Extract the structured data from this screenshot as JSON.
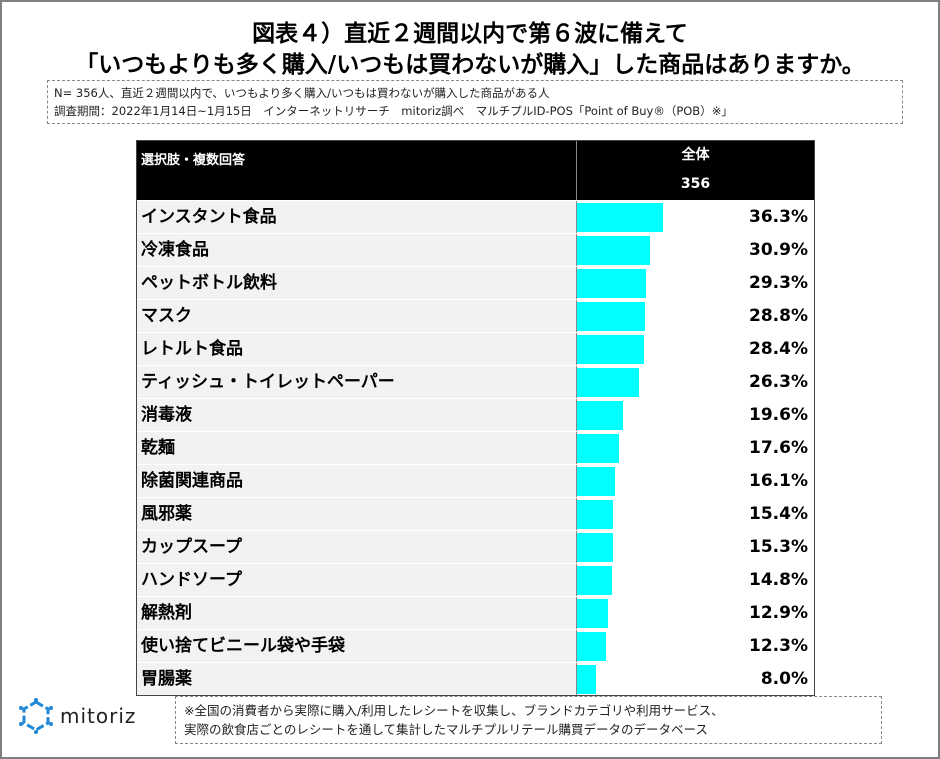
{
  "title_line1": "図表４）直近２週間以内で第６波に備えて",
  "title_line2": "「いつもよりも多く購入/いつもは買わないが購入」した商品はありますか。",
  "note_line1": "N= 356人、直近２週間以内で、いつもより多く購入/いつもは買わないが購入した商品がある人",
  "note_line2": "調査期間：2022年1月14日~1月15日　インターネットリサーチ　mitoriz調べ　マルチプルID-POS「Point of Buy®（POB）※」",
  "footer_line1": "※全国の消費者から実際に購入/利用したレシートを収集し、ブランドカテゴリや利用サービス、",
  "footer_line2": "実際の飲食店ごとのレシートを通して集計したマルチプルリテール購買データのデータベース",
  "logo_text": "mitoriz",
  "chart_data": {
    "type": "table",
    "header_label": "選択肢・複数回答",
    "column_header": "全体",
    "column_n": "356",
    "bar_color": "#00ffff",
    "categories": [
      "インスタント食品",
      "冷凍食品",
      "ペットボトル飲料",
      "マスク",
      "レトルト食品",
      "ティッシュ・トイレットペーパー",
      "消毒液",
      "乾麺",
      "除菌関連商品",
      "風邪薬",
      "カップスープ",
      "ハンドソープ",
      "解熱剤",
      "使い捨てビニール袋や手袋",
      "胃腸薬"
    ],
    "values": [
      36.3,
      30.9,
      29.3,
      28.8,
      28.4,
      26.3,
      19.6,
      17.6,
      16.1,
      15.4,
      15.3,
      14.8,
      12.9,
      12.3,
      8.0
    ],
    "labels": [
      "36.3%",
      "30.9%",
      "29.3%",
      "28.8%",
      "28.4%",
      "26.3%",
      "19.6%",
      "17.6%",
      "16.1%",
      "15.4%",
      "15.3%",
      "14.8%",
      "12.9%",
      "12.3%",
      "8.0%"
    ]
  }
}
